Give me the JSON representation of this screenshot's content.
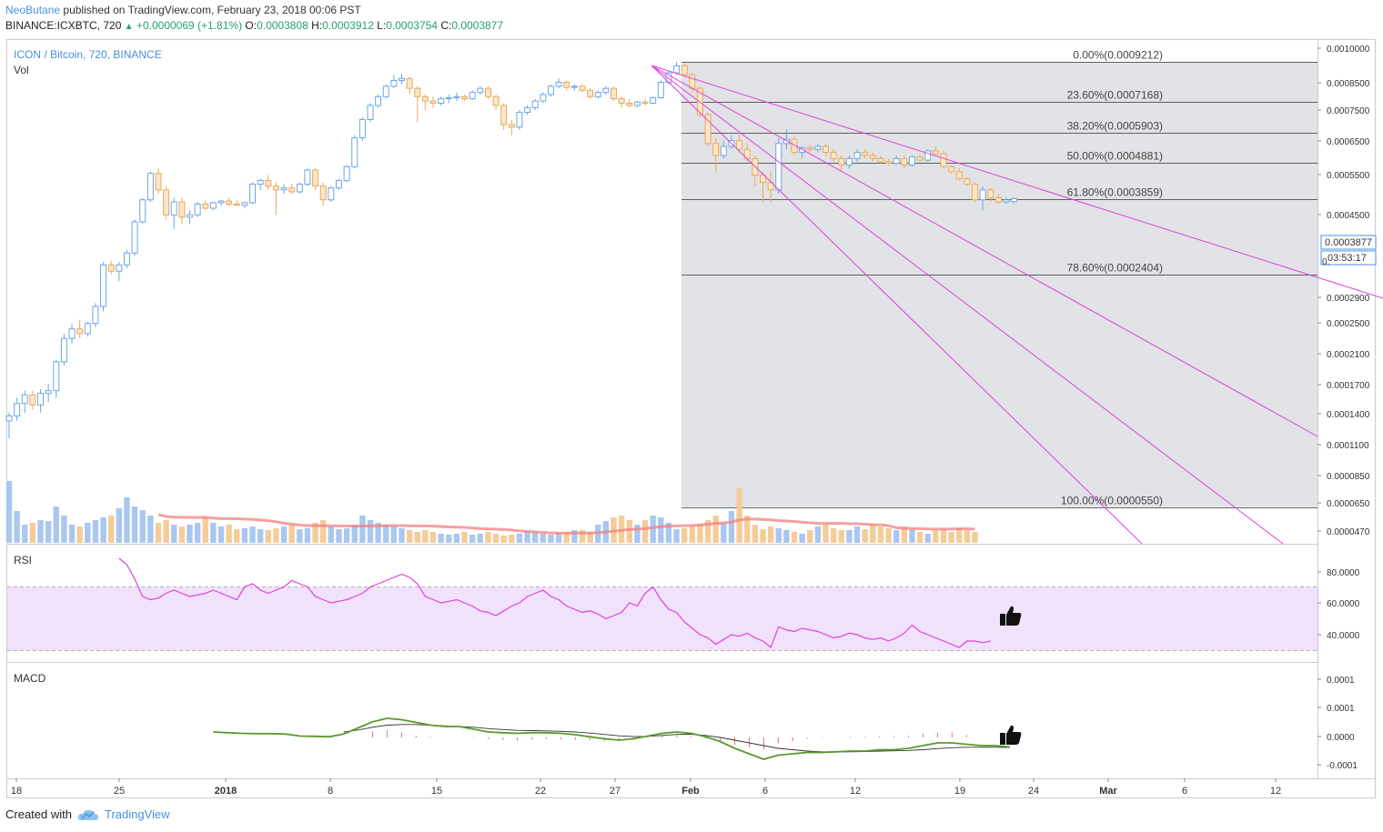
{
  "header": {
    "user": "NeoButane",
    "published": "published on TradingView.com, February 23, 2018 00:06 PST",
    "symbol_line": "BINANCE:ICXBTC, 720",
    "change": "+0.0000069 (+1.81%)",
    "open_label": "O:",
    "open": "0.0003808",
    "high_label": "H:",
    "high": "0.0003912",
    "low_label": "L:",
    "low": "0.0003754",
    "close_label": "C:",
    "close": "0.0003877"
  },
  "legend": {
    "title": "ICON / Bitcoin, 720, BINANCE",
    "vol": "Vol"
  },
  "price_axis": {
    "ticks": [
      "0.0010000",
      "0.0008500",
      "0.0007500",
      "0.0006500",
      "0.0005500",
      "0.0004500",
      "0.0002900",
      "0.0002500",
      "0.0002100",
      "0.0001700",
      "0.0001400",
      "0.0001100",
      "0.0000850",
      "0.0000650",
      "0.0000470"
    ],
    "last_price": "0.0003877",
    "countdown": "03:53:17",
    "partial_tick": "0."
  },
  "time_axis": {
    "labels": [
      "18",
      "25",
      "2018",
      "8",
      "15",
      "22",
      "27",
      "Feb",
      "6",
      "12",
      "19",
      "24",
      "Mar",
      "6",
      "12"
    ]
  },
  "fib_levels": [
    {
      "label": "0.00%(0.0009212)",
      "level": 0.0
    },
    {
      "label": "23.60%(0.0007168)",
      "level": 0.236
    },
    {
      "label": "38.20%(0.0005903)",
      "level": 0.382
    },
    {
      "label": "50.00%(0.0004881)",
      "level": 0.5
    },
    {
      "label": "61.80%(0.0003859)",
      "level": 0.618
    },
    {
      "label": "78.60%(0.0002404)",
      "level": 0.786
    },
    {
      "label": "100.00%(0.0000550)",
      "level": 1.0
    }
  ],
  "rsi": {
    "label": "RSI",
    "ticks": [
      "80.0000",
      "60.0000",
      "40.0000"
    ],
    "band": [
      30,
      70
    ]
  },
  "macd": {
    "label": "MACD",
    "ticks": [
      "0.0001",
      "0.0001",
      "0.0000",
      "-0.0001"
    ]
  },
  "footer": {
    "created": "Created with",
    "brand": "TradingView"
  },
  "colors": {
    "up": "#6ba5e7",
    "down": "#e8a95b",
    "fib_line": "#333333",
    "fib_fill": "#e1e3e6",
    "fan": "#e040e0",
    "rsi_line": "#e040e0",
    "rsi_band": "#f0e2fb",
    "macd_line": "#5a9a2a",
    "signal_line": "#333333",
    "hist": "#e57373",
    "vol_ma": "#f08080"
  },
  "chart_data": {
    "type": "candlestick",
    "title": "ICON / Bitcoin, 720, BINANCE",
    "interval": "720",
    "candles": [
      [
        9.5e-05,
        0.0001,
        8.5e-05,
        9.8e-05
      ],
      [
        9.8e-05,
        0.00011,
        9.5e-05,
        0.000106
      ],
      [
        0.000106,
        0.000115,
        0.0001,
        0.000112
      ],
      [
        0.000112,
        0.000115,
        0.000102,
        0.000105
      ],
      [
        0.000105,
        0.000116,
        0.0001,
        0.000113
      ],
      [
        0.000113,
        0.00012,
        0.000107,
        0.000115
      ],
      [
        0.000115,
        0.00014,
        0.00011,
        0.000138
      ],
      [
        0.000138,
        0.000165,
        0.000135,
        0.00016
      ],
      [
        0.00016,
        0.000175,
        0.000155,
        0.00017
      ],
      [
        0.00017,
        0.00018,
        0.00016,
        0.000165
      ],
      [
        0.000165,
        0.000178,
        0.000162,
        0.000176
      ],
      [
        0.000176,
        0.0002,
        0.000172,
        0.000196
      ],
      [
        0.000196,
        0.00026,
        0.00019,
        0.000255
      ],
      [
        0.000255,
        0.000262,
        0.00024,
        0.000245
      ],
      [
        0.000245,
        0.00026,
        0.00023,
        0.000255
      ],
      [
        0.000255,
        0.00028,
        0.00025,
        0.000275
      ],
      [
        0.000275,
        0.00034,
        0.00027,
        0.000335
      ],
      [
        0.000335,
        0.00039,
        0.00033,
        0.000385
      ],
      [
        0.000385,
        0.00046,
        0.00038,
        0.000455
      ],
      [
        0.000455,
        0.00047,
        0.0004,
        0.00041
      ],
      [
        0.00041,
        0.00042,
        0.00034,
        0.00035
      ],
      [
        0.00035,
        0.00039,
        0.00032,
        0.00038
      ],
      [
        0.00038,
        0.00039,
        0.00033,
        0.000345
      ],
      [
        0.000345,
        0.00036,
        0.00033,
        0.00035
      ],
      [
        0.00035,
        0.00038,
        0.000345,
        0.000375
      ],
      [
        0.000375,
        0.000385,
        0.00036,
        0.000365
      ],
      [
        0.000365,
        0.00038,
        0.00036,
        0.000378
      ],
      [
        0.000378,
        0.000385,
        0.00037,
        0.000382
      ],
      [
        0.000382,
        0.00039,
        0.00037,
        0.000375
      ],
      [
        0.000375,
        0.000385,
        0.00037,
        0.000372
      ],
      [
        0.000372,
        0.00038,
        0.000365,
        0.000378
      ],
      [
        0.000378,
        0.00043,
        0.000375,
        0.000425
      ],
      [
        0.000425,
        0.00044,
        0.00041,
        0.000435
      ],
      [
        0.000435,
        0.00045,
        0.00041,
        0.00042
      ],
      [
        0.00042,
        0.00043,
        0.00035,
        0.00041
      ],
      [
        0.00041,
        0.000425,
        0.0004,
        0.000415
      ],
      [
        0.000415,
        0.000425,
        0.0004,
        0.000405
      ],
      [
        0.000405,
        0.00043,
        0.0004,
        0.000425
      ],
      [
        0.000425,
        0.00047,
        0.00042,
        0.000465
      ],
      [
        0.000465,
        0.00047,
        0.00041,
        0.00042
      ],
      [
        0.00042,
        0.00043,
        0.00037,
        0.000385
      ],
      [
        0.000385,
        0.00042,
        0.00038,
        0.000415
      ],
      [
        0.000415,
        0.00044,
        0.00041,
        0.000435
      ],
      [
        0.000435,
        0.00048,
        0.00043,
        0.000475
      ],
      [
        0.000475,
        0.00058,
        0.00047,
        0.00057
      ],
      [
        0.00057,
        0.00065,
        0.00056,
        0.00064
      ],
      [
        0.00064,
        0.00071,
        0.00063,
        0.0007
      ],
      [
        0.0007,
        0.00075,
        0.00069,
        0.00074
      ],
      [
        0.00074,
        0.0008,
        0.00073,
        0.00079
      ],
      [
        0.00079,
        0.00085,
        0.00078,
        0.00082
      ],
      [
        0.00082,
        0.000855,
        0.0008,
        0.00083
      ],
      [
        0.00083,
        0.00084,
        0.00075,
        0.00078
      ],
      [
        0.00078,
        0.00079,
        0.00063,
        0.00074
      ],
      [
        0.00074,
        0.00075,
        0.00068,
        0.00072
      ],
      [
        0.00072,
        0.00074,
        0.00069,
        0.00071
      ],
      [
        0.00071,
        0.00074,
        0.0007,
        0.00073
      ],
      [
        0.00073,
        0.00075,
        0.00071,
        0.000735
      ],
      [
        0.000735,
        0.00076,
        0.00072,
        0.00074
      ],
      [
        0.00074,
        0.00075,
        0.00072,
        0.00073
      ],
      [
        0.00073,
        0.00077,
        0.000725,
        0.00076
      ],
      [
        0.00076,
        0.00079,
        0.00075,
        0.00078
      ],
      [
        0.00078,
        0.00079,
        0.00073,
        0.00074
      ],
      [
        0.00074,
        0.00075,
        0.00068,
        0.0007
      ],
      [
        0.0007,
        0.00071,
        0.0006,
        0.00062
      ],
      [
        0.00062,
        0.00064,
        0.00058,
        0.00061
      ],
      [
        0.00061,
        0.00068,
        0.0006,
        0.00067
      ],
      [
        0.00067,
        0.0007,
        0.00066,
        0.00069
      ],
      [
        0.00069,
        0.00073,
        0.00068,
        0.00072
      ],
      [
        0.00072,
        0.00076,
        0.00071,
        0.00075
      ],
      [
        0.00075,
        0.0008,
        0.00074,
        0.00079
      ],
      [
        0.00079,
        0.00083,
        0.00078,
        0.00081
      ],
      [
        0.00081,
        0.00082,
        0.00077,
        0.000785
      ],
      [
        0.000785,
        0.0008,
        0.00077,
        0.00079
      ],
      [
        0.00079,
        0.0008,
        0.00076,
        0.00077
      ],
      [
        0.00077,
        0.00078,
        0.00073,
        0.00074
      ],
      [
        0.00074,
        0.00077,
        0.00073,
        0.00076
      ],
      [
        0.00076,
        0.00079,
        0.00075,
        0.00078
      ],
      [
        0.00078,
        0.00079,
        0.00072,
        0.00073
      ],
      [
        0.00073,
        0.00074,
        0.00069,
        0.00071
      ],
      [
        0.00071,
        0.00073,
        0.00069,
        0.0007
      ],
      [
        0.0007,
        0.00072,
        0.00069,
        0.000715
      ],
      [
        0.000715,
        0.00073,
        0.0007,
        0.00071
      ],
      [
        0.00071,
        0.00074,
        0.000705,
        0.000735
      ],
      [
        0.000735,
        0.00082,
        0.00073,
        0.00081
      ],
      [
        0.00081,
        0.00087,
        0.0008,
        0.00086
      ],
      [
        0.00086,
        0.0009212,
        0.00085,
        0.0009
      ],
      [
        0.0009,
        0.00091,
        0.00084,
        0.00085
      ],
      [
        0.00085,
        0.00086,
        0.00076,
        0.00078
      ],
      [
        0.00078,
        0.00079,
        0.00065,
        0.00066
      ],
      [
        0.00066,
        0.00067,
        0.00054,
        0.00055
      ],
      [
        0.00055,
        0.00057,
        0.00046,
        0.00051
      ],
      [
        0.00051,
        0.00056,
        0.0005,
        0.00054
      ],
      [
        0.00054,
        0.00058,
        0.00053,
        0.00056
      ],
      [
        0.00056,
        0.00059,
        0.00052,
        0.00053
      ],
      [
        0.00053,
        0.00055,
        0.00049,
        0.0005
      ],
      [
        0.0005,
        0.00051,
        0.00042,
        0.00045
      ],
      [
        0.00045,
        0.00046,
        0.00038,
        0.00043
      ],
      [
        0.00043,
        0.00046,
        0.00038,
        0.00041
      ],
      [
        0.00041,
        0.00057,
        0.0004,
        0.00055
      ],
      [
        0.00055,
        0.0006,
        0.00053,
        0.000565
      ],
      [
        0.000565,
        0.000575,
        0.00051,
        0.00052
      ],
      [
        0.00052,
        0.00054,
        0.0005,
        0.000535
      ],
      [
        0.000535,
        0.000545,
        0.00052,
        0.00053
      ],
      [
        0.00053,
        0.00055,
        0.00052,
        0.00054
      ],
      [
        0.00054,
        0.00055,
        0.00051,
        0.00052
      ],
      [
        0.00052,
        0.00053,
        0.00049,
        0.0005
      ],
      [
        0.0005,
        0.00051,
        0.00046,
        0.00048
      ],
      [
        0.00048,
        0.00051,
        0.00047,
        0.0005
      ],
      [
        0.0005,
        0.00053,
        0.00049,
        0.00052
      ],
      [
        0.00052,
        0.00053,
        0.0005,
        0.00051
      ],
      [
        0.00051,
        0.00052,
        0.00049,
        0.0005
      ],
      [
        0.0005,
        0.00051,
        0.000485,
        0.00049
      ],
      [
        0.00049,
        0.0005,
        0.00048,
        0.000485
      ],
      [
        0.000485,
        0.00051,
        0.00048,
        0.0005
      ],
      [
        0.0005,
        0.00051,
        0.00047,
        0.00048
      ],
      [
        0.00048,
        0.00051,
        0.000475,
        0.000505
      ],
      [
        0.000505,
        0.000515,
        0.00049,
        0.000495
      ],
      [
        0.000495,
        0.00053,
        0.00049,
        0.000525
      ],
      [
        0.000525,
        0.00054,
        0.00051,
        0.000515
      ],
      [
        0.000515,
        0.000525,
        0.00047,
        0.000475
      ],
      [
        0.000475,
        0.00048,
        0.000455,
        0.00046
      ],
      [
        0.00046,
        0.00047,
        0.000435,
        0.00044
      ],
      [
        0.00044,
        0.000445,
        0.00042,
        0.000425
      ],
      [
        0.000425,
        0.00043,
        0.00038,
        0.000385
      ],
      [
        0.000385,
        0.00042,
        0.00036,
        0.00041
      ],
      [
        0.00041,
        0.000415,
        0.00038,
        0.00039
      ],
      [
        0.00039,
        0.0004,
        0.000375,
        0.00038
      ],
      [
        0.00038,
        0.00039,
        0.000375,
        0.000385
      ],
      [
        0.0003808,
        0.0003912,
        0.0003754,
        0.0003877
      ]
    ],
    "volume": [
      68,
      35,
      20,
      22,
      25,
      24,
      40,
      30,
      20,
      18,
      22,
      25,
      28,
      30,
      38,
      50,
      40,
      36,
      30,
      22,
      25,
      20,
      18,
      20,
      22,
      28,
      22,
      18,
      20,
      15,
      16,
      18,
      15,
      14,
      16,
      18,
      20,
      15,
      16,
      22,
      25,
      18,
      15,
      16,
      20,
      30,
      25,
      22,
      20,
      18,
      16,
      14,
      12,
      14,
      12,
      10,
      9,
      10,
      12,
      9,
      10,
      12,
      10,
      8,
      9,
      10,
      12,
      12,
      10,
      9,
      11,
      12,
      14,
      14,
      12,
      20,
      24,
      28,
      30,
      25,
      20,
      25,
      30,
      28,
      22,
      15,
      16,
      18,
      20,
      25,
      30,
      22,
      35,
      60,
      30,
      20,
      15,
      18,
      16,
      14,
      12,
      10,
      14,
      18,
      20,
      16,
      14,
      14,
      18,
      15,
      20,
      18,
      16,
      14,
      18,
      15,
      12,
      10,
      14,
      15,
      12,
      16,
      14,
      12
    ],
    "rsi": [
      88,
      84,
      75,
      64,
      62,
      63,
      66,
      68,
      66,
      64,
      65,
      66,
      68,
      66,
      64,
      62,
      70,
      72,
      68,
      66,
      68,
      70,
      74,
      72,
      70,
      64,
      62,
      60,
      61,
      62,
      64,
      66,
      70,
      72,
      74,
      76,
      78,
      76,
      72,
      64,
      62,
      60,
      61,
      62,
      60,
      58,
      55,
      54,
      52,
      55,
      58,
      60,
      64,
      66,
      68,
      64,
      62,
      58,
      56,
      54,
      55,
      53,
      50,
      52,
      54,
      60,
      58,
      66,
      70,
      62,
      56,
      54,
      48,
      44,
      40,
      38,
      34,
      37,
      40,
      39,
      41,
      38,
      36,
      32,
      45,
      43,
      42,
      44,
      43,
      42,
      40,
      38,
      39,
      41,
      40,
      38,
      37,
      38,
      36,
      38,
      41,
      46,
      42,
      40,
      38,
      36,
      34,
      32,
      36,
      36,
      35,
      36
    ],
    "macd": [
      4e-05,
      3.5e-05,
      3e-05,
      2.8e-05,
      2.8e-05,
      2.5e-05,
      1e-05,
      8e-06,
      5e-06,
      2.5e-05,
      7e-05,
      0.000115,
      0.00014,
      0.00013,
      0.00011,
      9e-05,
      8e-05,
      8e-05,
      6e-05,
      4e-05,
      3.5e-05,
      3e-05,
      3.5e-05,
      3.5e-05,
      3e-05,
      2e-05,
      5e-06,
      -1e-05,
      -2e-05,
      -1e-05,
      1e-05,
      3e-05,
      4e-05,
      3e-05,
      5e-06,
      -3e-05,
      -8e-05,
      -0.00012,
      -0.00016,
      -0.00013,
      -0.00012,
      -0.00011,
      -0.00011,
      -0.000105,
      -0.0001,
      -0.0001,
      -9e-05,
      -9e-05,
      -8e-05,
      -6e-05,
      -4e-05,
      -4e-05,
      -5e-05,
      -6e-05,
      -6e-05,
      -7e-05
    ],
    "signal": [
      null,
      null,
      null,
      null,
      null,
      null,
      null,
      null,
      null,
      4e-05,
      5.5e-05,
      7.5e-05,
      9e-05,
      9.5e-05,
      9.5e-05,
      9e-05,
      8.5e-05,
      8e-05,
      7.5e-05,
      6.5e-05,
      5.8e-05,
      5.2e-05,
      5e-05,
      4.8e-05,
      4.5e-05,
      4e-05,
      3.2e-05,
      2.2e-05,
      1.2e-05,
      6e-06,
      8e-06,
      1.5e-05,
      2.2e-05,
      2.3e-05,
      1.5e-05,
      0.0,
      -2e-05,
      -4e-05,
      -6e-05,
      -8e-05,
      -9e-05,
      -0.0001,
      -0.000105,
      -0.000105,
      -0.000105,
      -0.000103,
      -0.0001,
      -9.8e-05,
      -9.5e-05,
      -9e-05,
      -8.2e-05,
      -7.5e-05,
      -7.2e-05,
      -7.2e-05,
      -7.2e-05,
      -7.3e-05
    ],
    "histogram": [
      0,
      0,
      0,
      0,
      0,
      0,
      0,
      0,
      0,
      0,
      0,
      5e-05,
      6e-05,
      4e-05,
      1.5e-05,
      5e-06,
      0,
      0,
      -5e-06,
      -1.5e-05,
      -2e-05,
      -2.5e-05,
      -2e-05,
      -1.5e-05,
      -1.5e-05,
      -2e-05,
      -2.5e-05,
      -3e-05,
      -3e-05,
      -1.5e-05,
      5e-06,
      1.5e-05,
      2e-05,
      1e-05,
      -1e-05,
      -3e-05,
      -6e-05,
      -8e-05,
      -0.0001,
      -5e-05,
      -3e-05,
      -1e-05,
      -5e-06,
      0,
      5e-06,
      5e-06,
      1e-05,
      1e-05,
      1.5e-05,
      3e-05,
      4e-05,
      4e-05,
      2e-05,
      0,
      0,
      0
    ],
    "fib_range": {
      "high": 0.0009212,
      "low": 5.5e-05
    },
    "ylim": [
      4.3e-05,
      0.00103
    ],
    "y_scale": "log"
  }
}
